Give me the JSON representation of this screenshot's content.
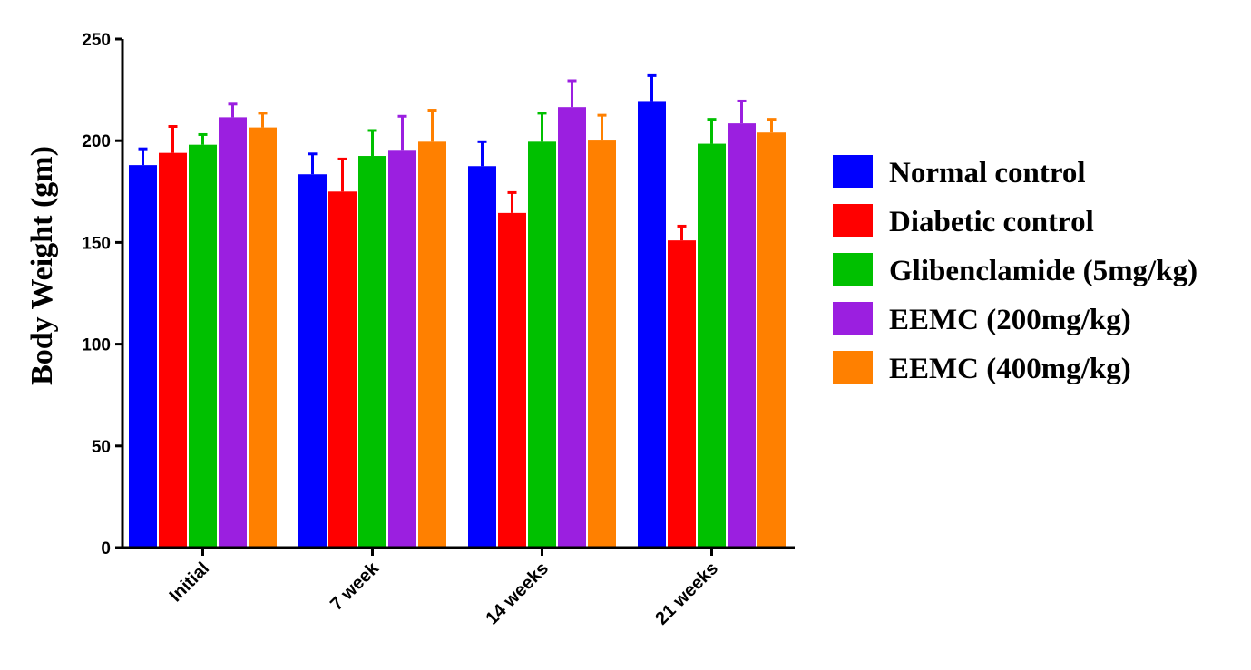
{
  "chart_data": {
    "type": "bar",
    "title": "",
    "xlabel": "",
    "ylabel": "Body Weight (gm)",
    "ylim": [
      0,
      250
    ],
    "yticks": [
      0,
      50,
      100,
      150,
      200,
      250
    ],
    "grid": false,
    "legend_position": "right",
    "categories": [
      "Initial",
      "7 week",
      "14 weeks",
      "21 weeks"
    ],
    "series": [
      {
        "name": "Normal control",
        "color": "#0000ff",
        "values": [
          188,
          183.5,
          187.5,
          219.5
        ],
        "errors": [
          8,
          10,
          12,
          12.5
        ]
      },
      {
        "name": "Diabetic control",
        "color": "#ff0000",
        "values": [
          194,
          175,
          164.5,
          151
        ],
        "errors": [
          13,
          16,
          10,
          7
        ]
      },
      {
        "name": "Glibenclamide (5mg/kg)",
        "color": "#00c000",
        "values": [
          198,
          192.5,
          199.5,
          198.5
        ],
        "errors": [
          5,
          12.5,
          14,
          12
        ]
      },
      {
        "name": "EEMC (200mg/kg)",
        "color": "#9b1fe0",
        "values": [
          211.5,
          195.5,
          216.5,
          208.5
        ],
        "errors": [
          6.5,
          16.5,
          13,
          11
        ]
      },
      {
        "name": "EEMC (400mg/kg)",
        "color": "#ff8000",
        "values": [
          206.5,
          199.5,
          200.5,
          204
        ],
        "errors": [
          7,
          15.5,
          12,
          6.5
        ]
      }
    ]
  }
}
